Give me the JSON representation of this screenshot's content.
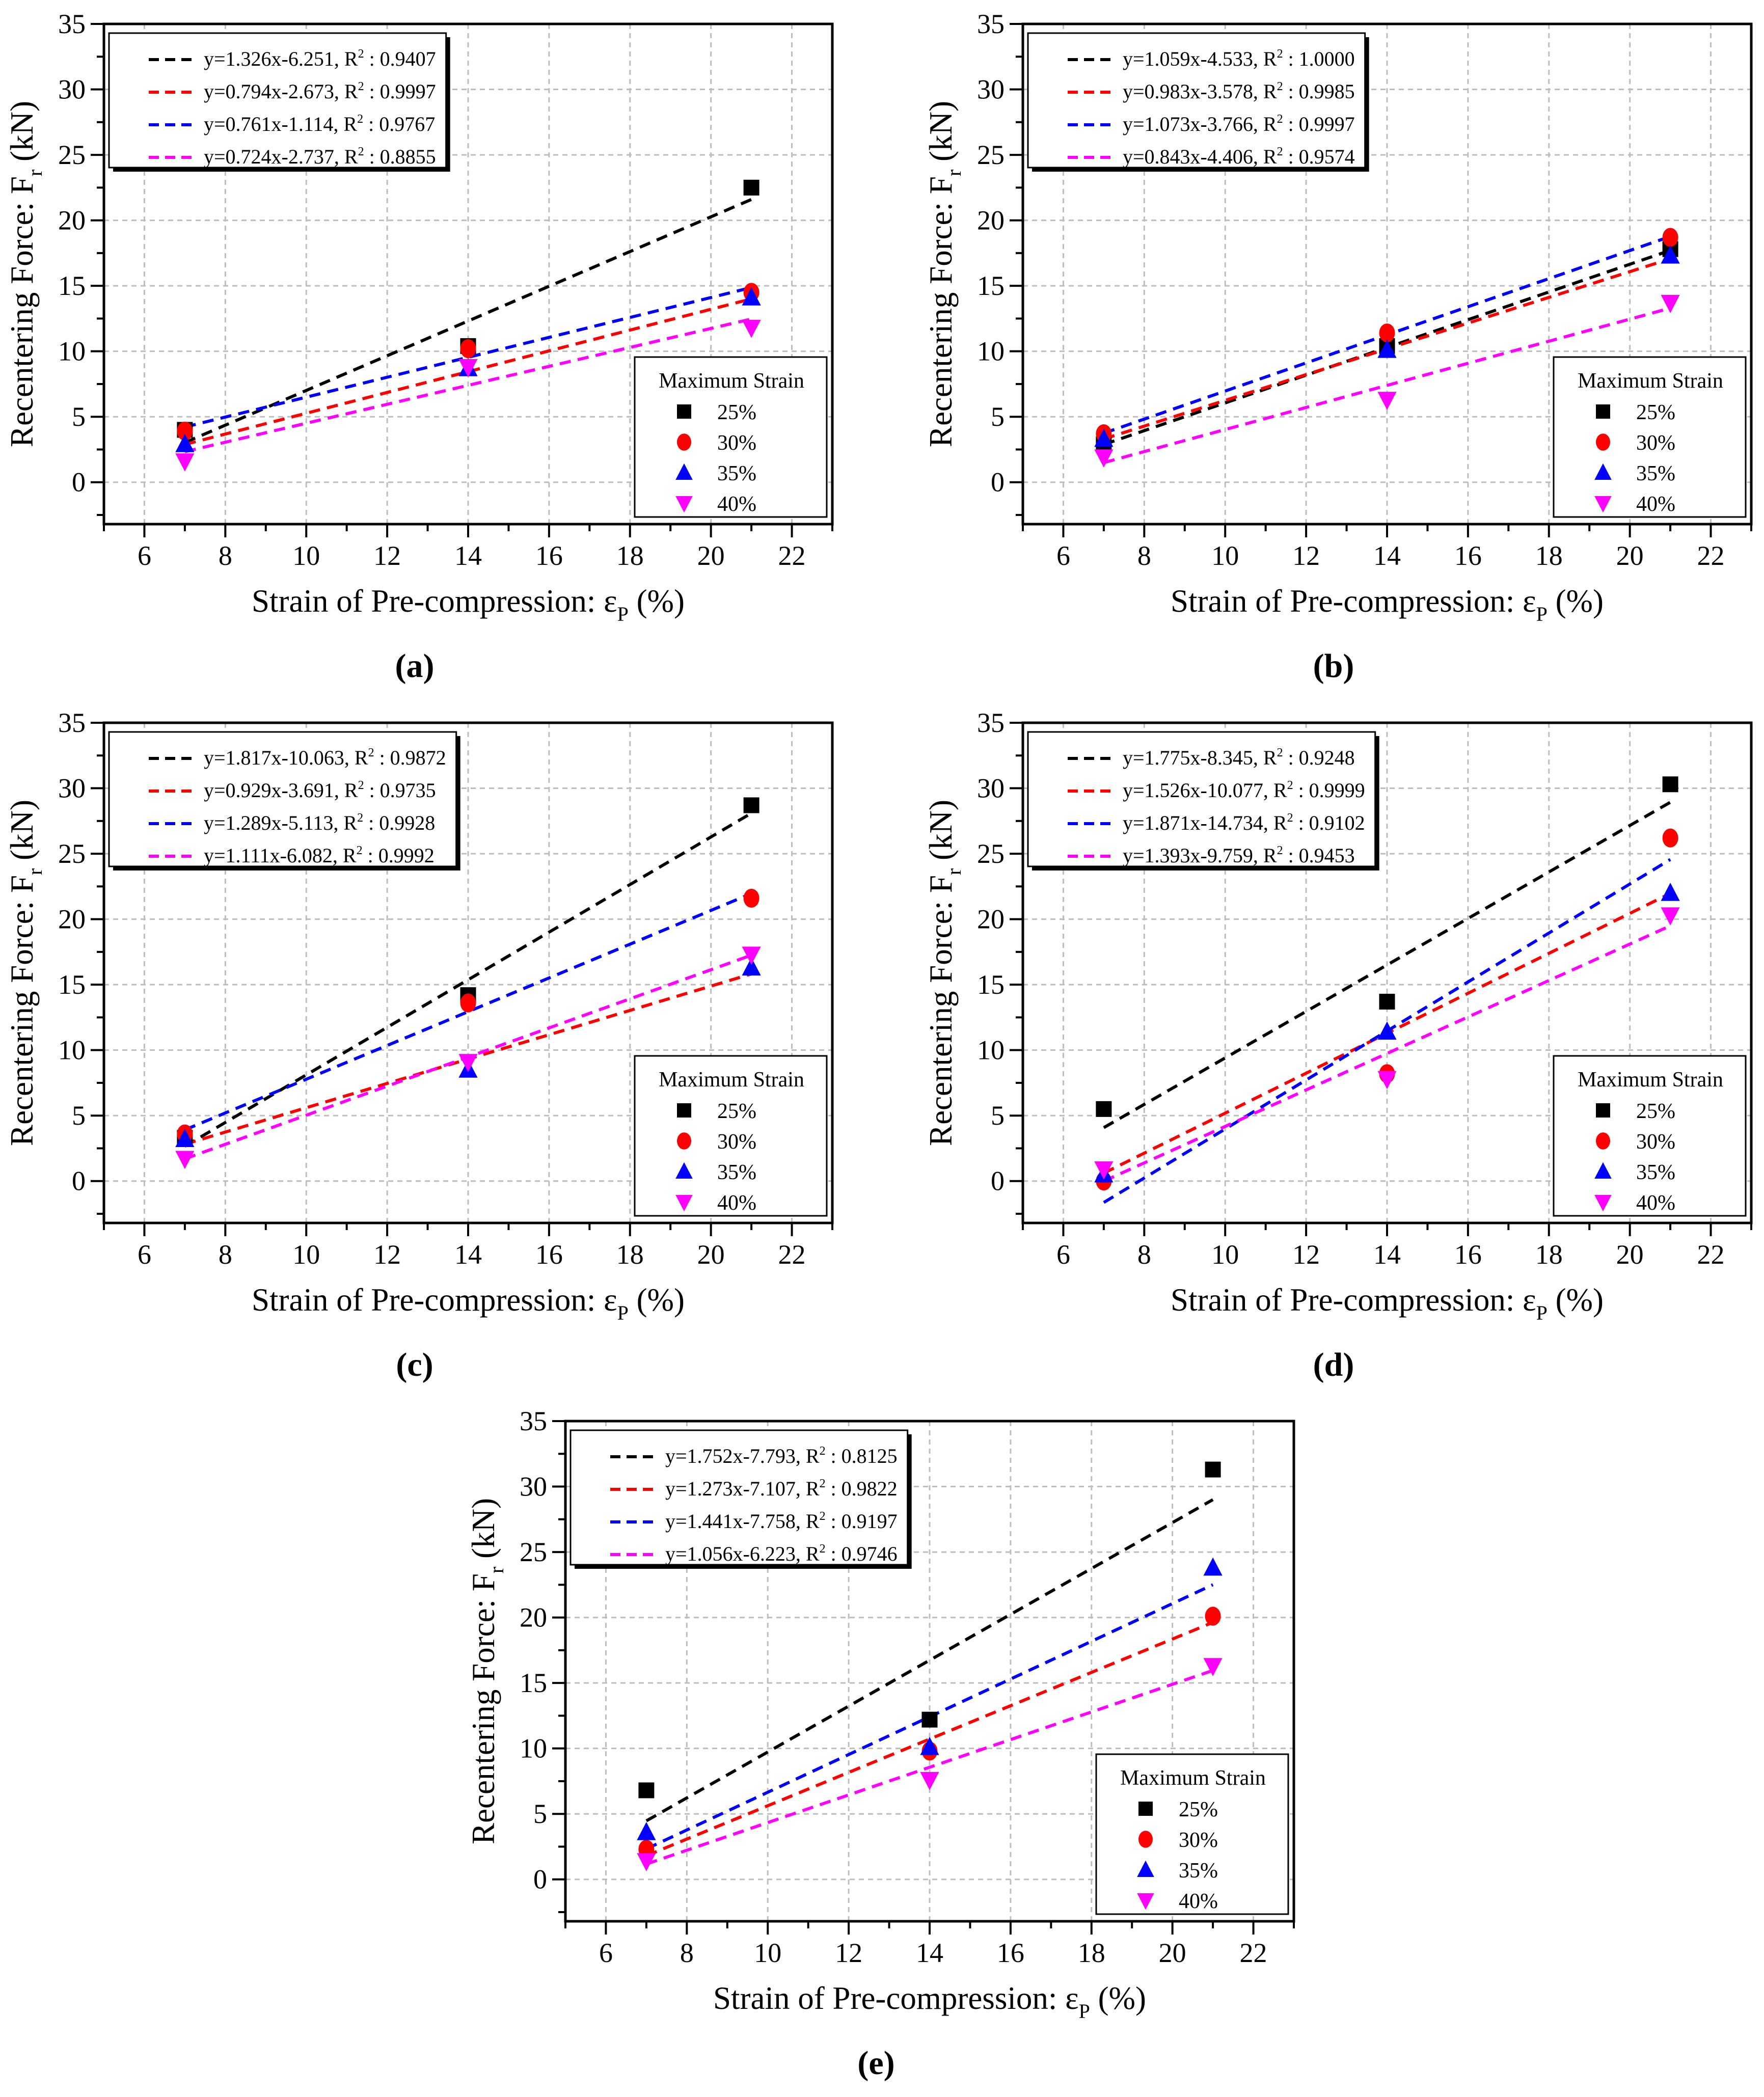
{
  "colors": {
    "25%": "#000000",
    "30%": "#ff0000",
    "35%": "#0000ff",
    "40%": "#ff00ff"
  },
  "common": {
    "xlabel_main": "Strain of Pre-compression: ε",
    "xlabel_sub": "P",
    "xlabel_unit": " (%)",
    "ylabel_main": "Recentering Force: F",
    "ylabel_sub": "r",
    "ylabel_unit": "  (kN)",
    "legend_title": "Maximum Strain",
    "r2_label": "R",
    "r2_sup": "2"
  },
  "chart_data": [
    {
      "type": "scatter",
      "label": "(a)",
      "xlim": [
        5,
        23
      ],
      "ylim": [
        -3.2,
        35
      ],
      "xticks": [
        6,
        8,
        10,
        12,
        14,
        16,
        18,
        20,
        22
      ],
      "yticks": [
        0,
        5,
        10,
        15,
        20,
        25,
        30,
        35
      ],
      "grid": true,
      "x": [
        7,
        14,
        21
      ],
      "series": [
        {
          "name": "25%",
          "marker": "square",
          "values": [
            4.0,
            10.4,
            22.5
          ],
          "fit": {
            "eq": "y=1.326x-6.251",
            "slope": 1.326,
            "intercept": -6.251,
            "r2": "0.9407"
          }
        },
        {
          "name": "30%",
          "marker": "circle",
          "values": [
            3.9,
            10.2,
            14.5
          ],
          "fit": {
            "eq": "y=0.794x-2.673",
            "slope": 0.794,
            "intercept": -2.673,
            "r2": "0.9997"
          }
        },
        {
          "name": "35%",
          "marker": "triangle-up",
          "values": [
            2.9,
            8.7,
            14.1
          ],
          "fit": {
            "eq": "y=0.761x-1.114",
            "slope": 0.761,
            "intercept": -1.114,
            "r2": "0.9767"
          }
        },
        {
          "name": "40%",
          "marker": "triangle-down",
          "values": [
            1.6,
            8.8,
            11.8
          ],
          "fit": {
            "eq": "y=0.724x-2.737",
            "slope": 0.724,
            "intercept": -2.737,
            "r2": "0.8855"
          }
        }
      ]
    },
    {
      "type": "scatter",
      "label": "(b)",
      "xlim": [
        5,
        23
      ],
      "ylim": [
        -3.2,
        35
      ],
      "xticks": [
        6,
        8,
        10,
        12,
        14,
        16,
        18,
        20,
        22
      ],
      "yticks": [
        0,
        5,
        10,
        15,
        20,
        25,
        30,
        35
      ],
      "grid": true,
      "x": [
        7,
        14,
        21
      ],
      "series": [
        {
          "name": "25%",
          "marker": "square",
          "values": [
            2.9,
            10.4,
            17.8
          ],
          "fit": {
            "eq": "y=1.059x-4.533",
            "slope": 1.059,
            "intercept": -4.533,
            "r2": "1.0000"
          }
        },
        {
          "name": "30%",
          "marker": "circle",
          "values": [
            3.7,
            11.4,
            18.7
          ],
          "fit": {
            "eq": "y=0.983x-3.578",
            "slope": 0.983,
            "intercept": -3.578,
            "r2": "0.9985"
          }
        },
        {
          "name": "35%",
          "marker": "triangle-up",
          "values": [
            3.3,
            10.1,
            17.3
          ],
          "fit": {
            "eq": "y=1.073x-3.766",
            "slope": 1.073,
            "intercept": -3.766,
            "r2": "0.9997"
          }
        },
        {
          "name": "40%",
          "marker": "triangle-down",
          "values": [
            1.9,
            6.3,
            13.7
          ],
          "fit": {
            "eq": "y=0.843x-4.406",
            "slope": 0.843,
            "intercept": -4.406,
            "r2": "0.9574"
          }
        }
      ]
    },
    {
      "type": "scatter",
      "label": "(c)",
      "xlim": [
        5,
        23
      ],
      "ylim": [
        -3.2,
        35
      ],
      "xticks": [
        6,
        8,
        10,
        12,
        14,
        16,
        18,
        20,
        22
      ],
      "yticks": [
        0,
        5,
        10,
        15,
        20,
        25,
        30,
        35
      ],
      "grid": true,
      "x": [
        7,
        14,
        21
      ],
      "series": [
        {
          "name": "25%",
          "marker": "square",
          "values": [
            3.3,
            14.2,
            28.7
          ],
          "fit": {
            "eq": "y=1.817x-10.063",
            "slope": 1.817,
            "intercept": -10.063,
            "r2": "0.9872"
          }
        },
        {
          "name": "30%",
          "marker": "circle",
          "values": [
            3.6,
            13.6,
            21.6
          ],
          "fit": {
            "eq": "y=0.929x-3.691",
            "slope": 0.929,
            "intercept": -3.691,
            "r2": "0.9735"
          }
        },
        {
          "name": "35%",
          "marker": "triangle-up",
          "values": [
            3.2,
            8.5,
            16.3
          ],
          "fit": {
            "eq": "y=1.289x-5.113",
            "slope": 1.289,
            "intercept": -5.113,
            "r2": "0.9928"
          }
        },
        {
          "name": "40%",
          "marker": "triangle-down",
          "values": [
            1.7,
            9.1,
            17.3
          ],
          "fit": {
            "eq": "y=1.111x-6.082",
            "slope": 1.111,
            "intercept": -6.082,
            "r2": "0.9992"
          }
        }
      ]
    },
    {
      "type": "scatter",
      "label": "(d)",
      "xlim": [
        5,
        23
      ],
      "ylim": [
        -3.2,
        35
      ],
      "xticks": [
        6,
        8,
        10,
        12,
        14,
        16,
        18,
        20,
        22
      ],
      "yticks": [
        0,
        5,
        10,
        15,
        20,
        25,
        30,
        35
      ],
      "grid": true,
      "x": [
        7,
        14,
        21
      ],
      "series": [
        {
          "name": "25%",
          "marker": "square",
          "values": [
            5.5,
            13.7,
            30.3
          ],
          "fit": {
            "eq": "y=1.775x-8.345",
            "slope": 1.775,
            "intercept": -8.345,
            "r2": "0.9248"
          }
        },
        {
          "name": "30%",
          "marker": "circle",
          "values": [
            0.0,
            8.2,
            26.2
          ],
          "fit": {
            "eq": "y=1.526x-10.077",
            "slope": 1.526,
            "intercept": -10.077,
            "r2": "0.9999"
          }
        },
        {
          "name": "35%",
          "marker": "triangle-up",
          "values": [
            0.5,
            11.4,
            22.0
          ],
          "fit": {
            "eq": "y=1.871x-14.734",
            "slope": 1.871,
            "intercept": -14.734,
            "r2": "0.9102"
          }
        },
        {
          "name": "40%",
          "marker": "triangle-down",
          "values": [
            0.9,
            7.8,
            20.3
          ],
          "fit": {
            "eq": "y=1.393x-9.759",
            "slope": 1.393,
            "intercept": -9.759,
            "r2": "0.9453"
          }
        }
      ]
    },
    {
      "type": "scatter",
      "label": "(e)",
      "xlim": [
        5,
        23
      ],
      "ylim": [
        -3.2,
        35
      ],
      "xticks": [
        6,
        8,
        10,
        12,
        14,
        16,
        18,
        20,
        22
      ],
      "yticks": [
        0,
        5,
        10,
        15,
        20,
        25,
        30,
        35
      ],
      "grid": true,
      "x": [
        7,
        14,
        21
      ],
      "series": [
        {
          "name": "25%",
          "marker": "square",
          "values": [
            6.8,
            12.2,
            31.3
          ],
          "fit": {
            "eq": "y=1.752x-7.793",
            "slope": 1.752,
            "intercept": -7.793,
            "r2": "0.8125"
          }
        },
        {
          "name": "30%",
          "marker": "circle",
          "values": [
            2.3,
            9.8,
            20.1
          ],
          "fit": {
            "eq": "y=1.273x-7.107",
            "slope": 1.273,
            "intercept": -7.107,
            "r2": "0.9822"
          }
        },
        {
          "name": "35%",
          "marker": "triangle-up",
          "values": [
            3.6,
            10.1,
            23.8
          ],
          "fit": {
            "eq": "y=1.441x-7.758",
            "slope": 1.441,
            "intercept": -7.758,
            "r2": "0.9197"
          }
        },
        {
          "name": "40%",
          "marker": "triangle-down",
          "values": [
            1.4,
            7.6,
            16.3
          ],
          "fit": {
            "eq": "y=1.056x-6.223",
            "slope": 1.056,
            "intercept": -6.223,
            "r2": "0.9746"
          }
        }
      ]
    }
  ]
}
